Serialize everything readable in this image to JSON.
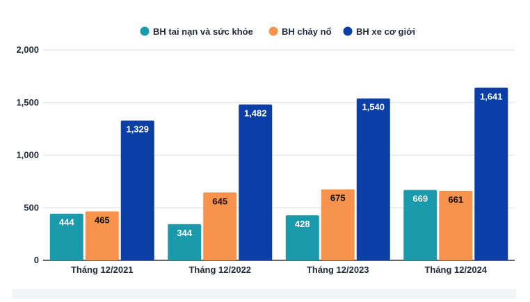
{
  "chart_data": {
    "type": "bar",
    "categories": [
      "Tháng 12/2021",
      "Tháng 12/2022",
      "Tháng 12/2023",
      "Tháng 12/2024"
    ],
    "series": [
      {
        "name": "BH tai nạn và sức khỏe",
        "color": "#1a9aaa",
        "values": [
          444,
          344,
          428,
          669
        ],
        "labels": [
          "444",
          "344",
          "428",
          "669"
        ],
        "label_color": "#ffffff"
      },
      {
        "name": "BH cháy nổ",
        "color": "#f7934c",
        "values": [
          465,
          645,
          675,
          661
        ],
        "labels": [
          "465",
          "645",
          "675",
          "661"
        ],
        "label_color": "#111111"
      },
      {
        "name": "BH xe cơ giới",
        "color": "#0b3fa7",
        "values": [
          1329,
          1482,
          1540,
          1641
        ],
        "labels": [
          "1,329",
          "1,482",
          "1,540",
          "1,641"
        ],
        "label_color": "#ffffff"
      }
    ],
    "yticks": [
      0,
      500,
      1000,
      1500,
      2000
    ],
    "ytick_labels": [
      "0",
      "500",
      "1,000",
      "1,500",
      "2,000"
    ],
    "ylim": [
      0,
      2000
    ],
    "grid": true,
    "legend_position": "top-center"
  }
}
